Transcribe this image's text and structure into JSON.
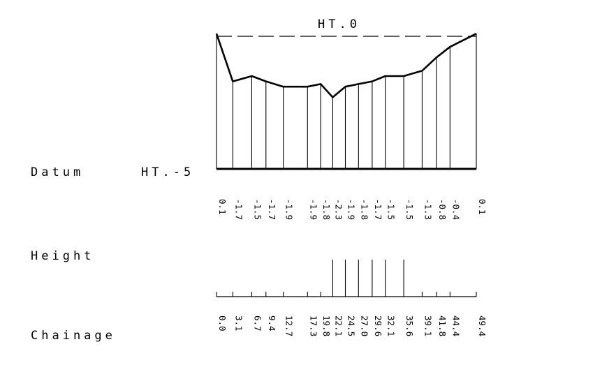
{
  "labels": {
    "ht_top": "HT.0",
    "datum": "Datum",
    "datum_ht": "HT.-5",
    "height": "Height",
    "chainage": "Chainage"
  },
  "profile": {
    "top_level": 0,
    "datum_level": -5,
    "points": [
      {
        "chainage": 0.0,
        "chainage_label": "0.0",
        "height": 0.1,
        "height_label": "0.1"
      },
      {
        "chainage": 3.1,
        "chainage_label": "3.1",
        "height": -1.7,
        "height_label": "-1.7"
      },
      {
        "chainage": 6.7,
        "chainage_label": "6.7",
        "height": -1.5,
        "height_label": "-1.5"
      },
      {
        "chainage": 9.4,
        "chainage_label": "9.4",
        "height": -1.7,
        "height_label": "-1.7"
      },
      {
        "chainage": 12.7,
        "chainage_label": "12.7",
        "height": -1.9,
        "height_label": "-1.9"
      },
      {
        "chainage": 17.3,
        "chainage_label": "17.3",
        "height": -1.9,
        "height_label": "-1.9"
      },
      {
        "chainage": 19.8,
        "chainage_label": "19.8",
        "height": -1.8,
        "height_label": "-1.8"
      },
      {
        "chainage": 22.1,
        "chainage_label": "22.1",
        "height": -2.3,
        "height_label": "-2.3"
      },
      {
        "chainage": 24.5,
        "chainage_label": "24.5",
        "height": -1.9,
        "height_label": "-1.9"
      },
      {
        "chainage": 27.0,
        "chainage_label": "27.0",
        "height": -1.8,
        "height_label": "-1.8"
      },
      {
        "chainage": 29.6,
        "chainage_label": "29.6",
        "height": -1.7,
        "height_label": "-1.7"
      },
      {
        "chainage": 32.1,
        "chainage_label": "32.1",
        "height": -1.5,
        "height_label": "-1.5"
      },
      {
        "chainage": 35.6,
        "chainage_label": "35.6",
        "height": -1.5,
        "height_label": "-1.5"
      },
      {
        "chainage": 39.1,
        "chainage_label": "39.1",
        "height": -1.3,
        "height_label": "-1.3"
      },
      {
        "chainage": 41.8,
        "chainage_label": "41.8",
        "height": -0.8,
        "height_label": "-0.8"
      },
      {
        "chainage": 44.4,
        "chainage_label": "44.4",
        "height": -0.4,
        "height_label": "-0.4"
      },
      {
        "chainage": 49.4,
        "chainage_label": "49.4",
        "height": 0.1,
        "height_label": "0.1"
      }
    ]
  }
}
